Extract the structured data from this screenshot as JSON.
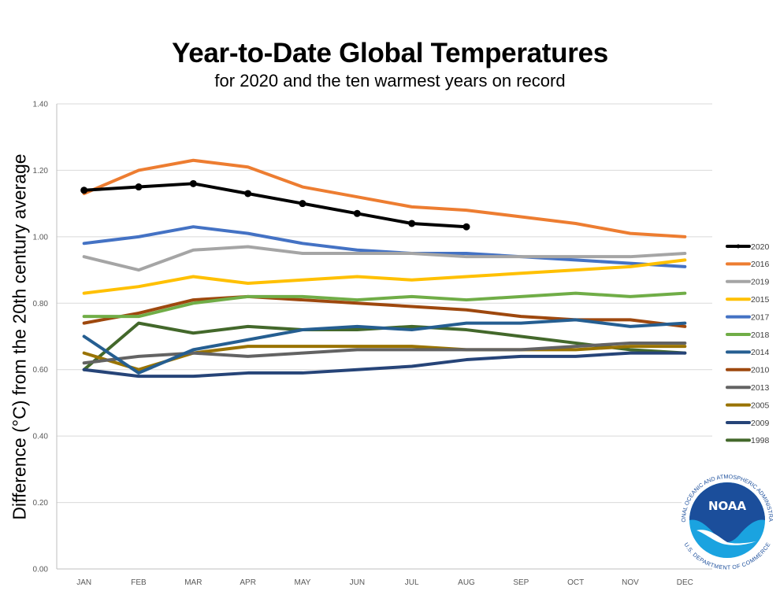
{
  "chart_data": {
    "type": "line",
    "title": "Year-to-Date Global Temperatures",
    "subtitle": "for 2020 and the ten warmest years on record",
    "xlabel": "",
    "ylabel": "Difference (°C) from the 20th century average",
    "ylim": [
      0,
      1.4
    ],
    "yticks": [
      "0.00",
      "0.20",
      "0.40",
      "0.60",
      "0.80",
      "1.00",
      "1.20",
      "1.40"
    ],
    "ytick_values": [
      0,
      0.2,
      0.4,
      0.6,
      0.8,
      1.0,
      1.2,
      1.4
    ],
    "grid": true,
    "legend_position": "right",
    "categories": [
      "JAN",
      "FEB",
      "MAR",
      "APR",
      "MAY",
      "JUN",
      "JUL",
      "AUG",
      "SEP",
      "OCT",
      "NOV",
      "DEC"
    ],
    "series": [
      {
        "name": "2020",
        "color": "#000000",
        "markers": true,
        "values": [
          1.14,
          1.15,
          1.16,
          1.13,
          1.1,
          1.07,
          1.04,
          1.03
        ]
      },
      {
        "name": "2016",
        "color": "#ED7D31",
        "markers": false,
        "values": [
          1.13,
          1.2,
          1.23,
          1.21,
          1.15,
          1.12,
          1.09,
          1.08,
          1.06,
          1.04,
          1.01,
          1.0
        ]
      },
      {
        "name": "2019",
        "color": "#A5A5A5",
        "markers": false,
        "values": [
          0.94,
          0.9,
          0.96,
          0.97,
          0.95,
          0.95,
          0.95,
          0.94,
          0.94,
          0.94,
          0.94,
          0.95
        ]
      },
      {
        "name": "2015",
        "color": "#FFC000",
        "markers": false,
        "values": [
          0.83,
          0.85,
          0.88,
          0.86,
          0.87,
          0.88,
          0.87,
          0.88,
          0.89,
          0.9,
          0.91,
          0.93
        ]
      },
      {
        "name": "2017",
        "color": "#4472C4",
        "markers": false,
        "values": [
          0.98,
          1.0,
          1.03,
          1.01,
          0.98,
          0.96,
          0.95,
          0.95,
          0.94,
          0.93,
          0.92,
          0.91
        ]
      },
      {
        "name": "2018",
        "color": "#70AD47",
        "markers": false,
        "values": [
          0.76,
          0.76,
          0.8,
          0.82,
          0.82,
          0.81,
          0.82,
          0.81,
          0.82,
          0.83,
          0.82,
          0.83
        ]
      },
      {
        "name": "2014",
        "color": "#255E91",
        "markers": false,
        "values": [
          0.7,
          0.59,
          0.66,
          0.69,
          0.72,
          0.73,
          0.72,
          0.74,
          0.74,
          0.75,
          0.73,
          0.74
        ]
      },
      {
        "name": "2010",
        "color": "#9E480E",
        "markers": false,
        "values": [
          0.74,
          0.77,
          0.81,
          0.82,
          0.81,
          0.8,
          0.79,
          0.78,
          0.76,
          0.75,
          0.75,
          0.73
        ]
      },
      {
        "name": "2013",
        "color": "#636363",
        "markers": false,
        "values": [
          0.62,
          0.64,
          0.65,
          0.64,
          0.65,
          0.66,
          0.66,
          0.66,
          0.66,
          0.67,
          0.68,
          0.68
        ]
      },
      {
        "name": "2005",
        "color": "#997300",
        "markers": false,
        "values": [
          0.65,
          0.6,
          0.65,
          0.67,
          0.67,
          0.67,
          0.67,
          0.66,
          0.66,
          0.66,
          0.67,
          0.67
        ]
      },
      {
        "name": "2009",
        "color": "#264478",
        "markers": false,
        "values": [
          0.6,
          0.58,
          0.58,
          0.59,
          0.59,
          0.6,
          0.61,
          0.63,
          0.64,
          0.64,
          0.65,
          0.65
        ]
      },
      {
        "name": "1998",
        "color": "#43682B",
        "markers": false,
        "values": [
          0.6,
          0.74,
          0.71,
          0.73,
          0.72,
          0.72,
          0.73,
          0.72,
          0.7,
          0.68,
          0.66,
          0.65
        ]
      }
    ]
  },
  "logo": {
    "name": "NOAA",
    "ring_text_top": "NATIONAL OCEANIC AND ATMOSPHERIC ADMINISTRATION",
    "ring_text_bottom": "U.S. DEPARTMENT OF COMMERCE",
    "colors": {
      "dark": "#1B4E9B",
      "light": "#1AA3E0"
    }
  }
}
